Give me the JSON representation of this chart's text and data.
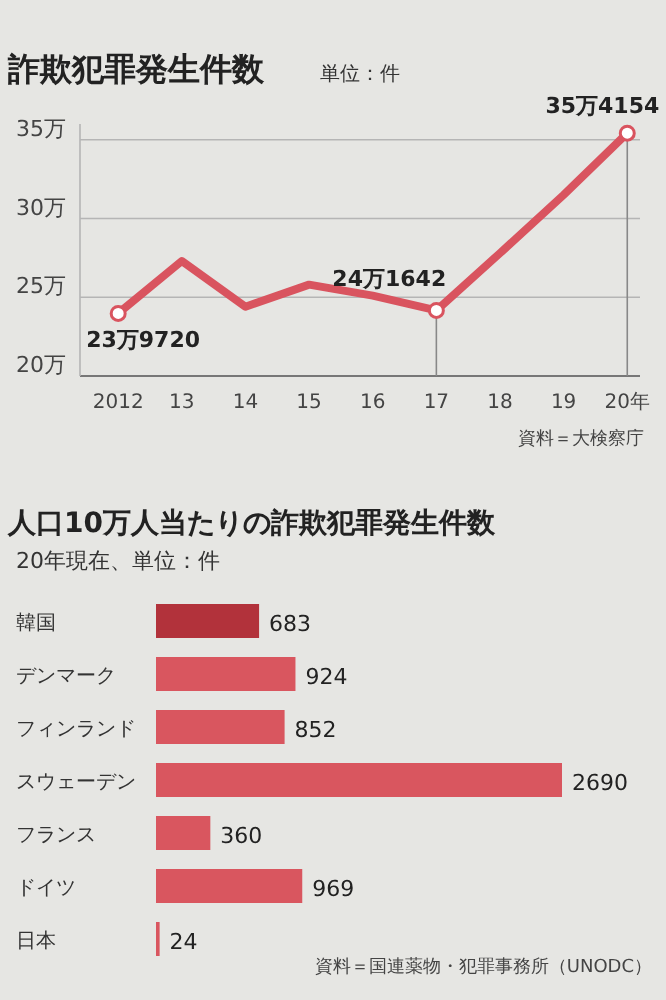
{
  "chart_data": [
    {
      "type": "line",
      "title": "詐欺犯罪発生件数",
      "subtitle": "単位：件",
      "categories": [
        "2012",
        "13",
        "14",
        "15",
        "16",
        "17",
        "18",
        "19",
        "20年"
      ],
      "series": [
        {
          "color": "#d9545f",
          "values": [
            23.972,
            27.3,
            24.4,
            25.8,
            25.1,
            24.1642,
            27.8,
            31.5,
            35.4154
          ]
        }
      ],
      "ylim": [
        20,
        36
      ],
      "yticks": [
        {
          "value": 20,
          "label": "20万"
        },
        {
          "value": 25,
          "label": "25万"
        },
        {
          "value": 30,
          "label": "30万"
        },
        {
          "value": 35,
          "label": "35万"
        }
      ],
      "grid": "y",
      "ref_lines": [
        {
          "axis": "x",
          "value": "17",
          "color": "#888888"
        },
        {
          "axis": "x",
          "value": "20年",
          "color": "#888888"
        }
      ],
      "annotations": [
        {
          "text": "23万9720",
          "x": "2012",
          "y": 23.972
        },
        {
          "text": "24万1642",
          "x": "17",
          "y": 24.1642
        },
        {
          "text": "35万4154",
          "x": "20年",
          "y": 35.4154
        },
        "資料＝大検察庁"
      ]
    },
    {
      "type": "bar",
      "orientation": "horizontal",
      "title": "人口10万人当たりの詐欺犯罪発生件数",
      "subtitle": "20年現在、単位：件",
      "categories": [
        "韓国",
        "デンマーク",
        "フィンランド",
        "スウェーデン",
        "フランス",
        "ドイツ",
        "日本"
      ],
      "values": [
        683,
        924,
        852,
        2690,
        360,
        969,
        24
      ],
      "colors": [
        "#b2323b",
        "#d9565f",
        "#d9565f",
        "#d9565f",
        "#d9565f",
        "#d9565f",
        "#d9565f"
      ],
      "data_labels": true,
      "annotations": [
        "資料＝国連薬物・犯罪事務所（UNODC）"
      ]
    }
  ]
}
